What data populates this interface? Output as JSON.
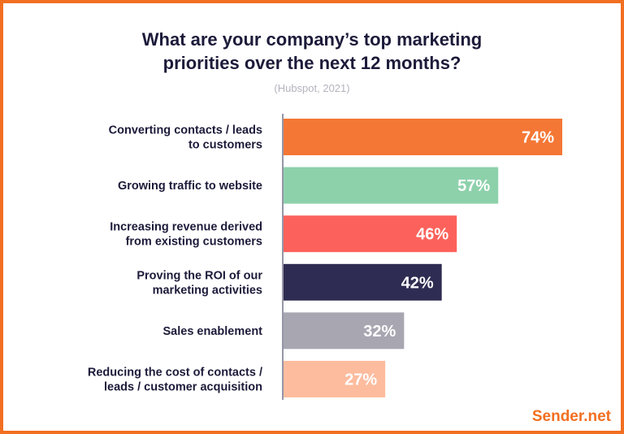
{
  "title_lines": [
    "What are your company’s top marketing",
    "priorities over the next 12 months?"
  ],
  "subtitle": "(Hubspot, 2021)",
  "brand": {
    "name": "Sender.net",
    "color": "#f26f21"
  },
  "chart_data": {
    "type": "bar",
    "orientation": "horizontal",
    "categories": [
      [
        "Converting contacts / leads",
        "to customers"
      ],
      [
        "Growing traffic to website"
      ],
      [
        "Increasing revenue derived",
        "from existing customers"
      ],
      [
        "Proving the ROI of our",
        "marketing activities"
      ],
      [
        "Sales enablement"
      ],
      [
        "Reducing the cost of contacts /",
        "leads / customer acquisition"
      ]
    ],
    "values": [
      74,
      57,
      46,
      42,
      32,
      27
    ],
    "value_labels": [
      "74%",
      "57%",
      "46%",
      "42%",
      "32%",
      "27%"
    ],
    "colors": [
      "#f47735",
      "#8dd1ab",
      "#fc625b",
      "#2e2c52",
      "#a7a6b1",
      "#fdbc9e"
    ],
    "xlim": [
      0,
      74
    ],
    "grid": false,
    "legend": "none"
  }
}
